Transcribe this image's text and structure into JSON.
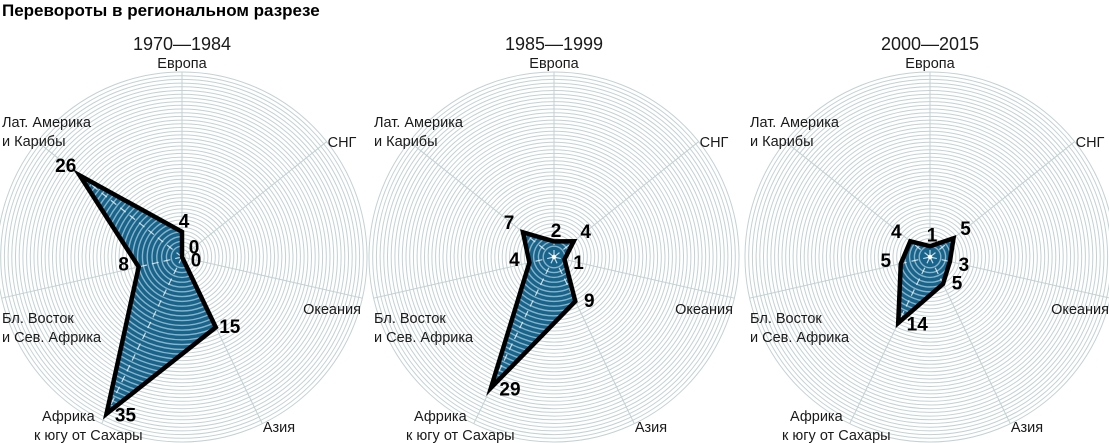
{
  "title": "Перевороты в региональном разрезе",
  "colors": {
    "fill": "#17648c",
    "grid": "#c3d1d3",
    "outline": "#000000",
    "inner_grid": "#ffffff",
    "text": "#1a1a1a"
  },
  "chart_data": {
    "type": "radar",
    "categories": [
      "Европа",
      "СНГ",
      "Океания",
      "Азия",
      "Африка к югу от Сахары",
      "Бл. Восток и Сев. Африка",
      "Лат. Америка и Карибы"
    ],
    "series": [
      {
        "name": "1970—1984",
        "values": [
          4,
          0,
          0,
          15,
          35,
          8,
          26
        ]
      },
      {
        "name": "1985—1999",
        "values": [
          2,
          4,
          1,
          9,
          29,
          4,
          7
        ]
      },
      {
        "name": "2000—2015",
        "values": [
          1,
          5,
          3,
          5,
          14,
          5,
          4
        ]
      }
    ],
    "rmax": 37,
    "grid": "concentric-circles",
    "legend": "none"
  }
}
